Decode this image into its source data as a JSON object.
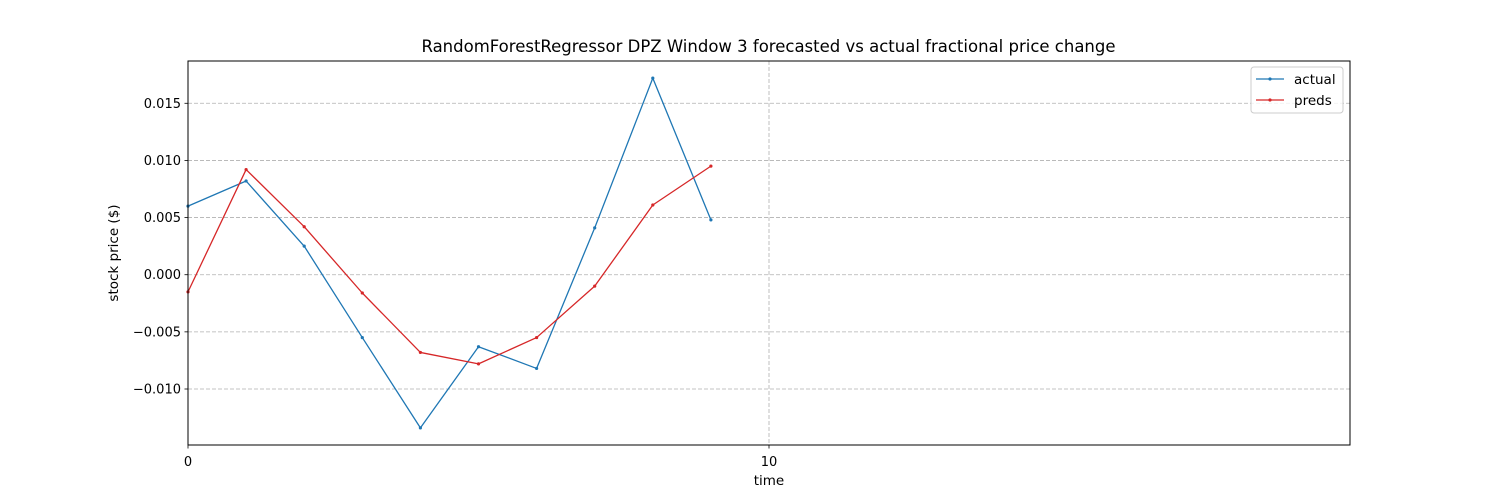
{
  "chart_data": {
    "type": "line",
    "title": "RandomForestRegressor DPZ Window 3 forecasted vs actual fractional price change",
    "xlabel": "time",
    "ylabel": "stock price ($)",
    "xlim": [
      0,
      20
    ],
    "ylim": [
      -0.0149,
      0.0187
    ],
    "x_ticks": [
      0,
      10
    ],
    "y_ticks": [
      -0.01,
      -0.005,
      0.0,
      0.005,
      0.01,
      0.015
    ],
    "y_tick_labels": [
      "−0.010",
      "−0.005",
      "0.000",
      "0.005",
      "0.010",
      "0.015"
    ],
    "grid": true,
    "legend_position": "top-right",
    "x": [
      0,
      1,
      2,
      3,
      4,
      5,
      6,
      7,
      8,
      9
    ],
    "series": [
      {
        "name": "actual",
        "color": "#1f77b4",
        "values": [
          0.006,
          0.0082,
          0.0025,
          -0.0055,
          -0.0134,
          -0.0063,
          -0.0082,
          0.0041,
          0.0172,
          0.0048
        ]
      },
      {
        "name": "preds",
        "color": "#d62728",
        "values": [
          -0.0015,
          0.0092,
          0.0042,
          -0.0016,
          -0.0068,
          -0.0078,
          -0.0055,
          -0.001,
          0.0061,
          0.0095
        ]
      }
    ]
  }
}
